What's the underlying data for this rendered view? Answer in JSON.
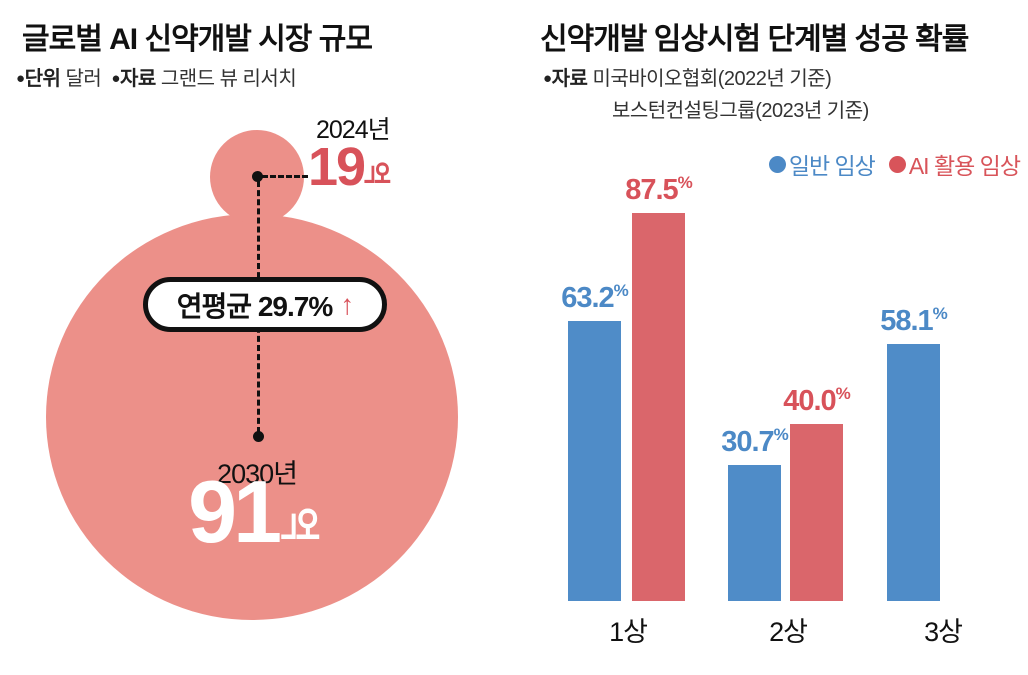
{
  "left_chart": {
    "title": "글로벌 AI 신약개발 시장 규모",
    "meta": [
      {
        "bullet": "●",
        "key": "단위",
        "value": "달러"
      },
      {
        "bullet": "●",
        "key": "자료",
        "value": "그랜드 뷰 리서치"
      }
    ],
    "bubbles": [
      {
        "year": "2024년",
        "value": "19",
        "unit": "억"
      },
      {
        "year": "2030년",
        "value": "91",
        "unit": "억"
      }
    ],
    "growth_badge": {
      "label": "연평균 29.7%",
      "arrow": "↑"
    },
    "colors": {
      "bubble": "#EC9089",
      "accent_red": "#D8525A",
      "white": "#FFFFFF"
    }
  },
  "right_chart": {
    "title": "신약개발 임상시험 단계별 성공 확률",
    "meta": {
      "bullet": "●",
      "key": "자료",
      "line1": "미국바이오협회(2022년 기준)",
      "line2": "보스턴컨설팅그룹(2023년 기준)"
    },
    "legend": [
      {
        "bullet": "●",
        "label": "일반 임상",
        "color": "#4C89C6"
      },
      {
        "bullet": "●",
        "label": "AI 활용 임상",
        "color": "#D8545A"
      }
    ]
  },
  "chart_data": [
    {
      "type": "bubble",
      "title": "글로벌 AI 신약개발 시장 규모",
      "unit": "억 달러",
      "points": [
        {
          "label": "2024년",
          "value": 19
        },
        {
          "label": "2030년",
          "value": 91
        }
      ],
      "annotation": "연평균 29.7% ↑",
      "bubble_color": "#EC9089"
    },
    {
      "type": "bar",
      "title": "신약개발 임상시험 단계별 성공 확률",
      "categories": [
        "1상",
        "2상",
        "3상"
      ],
      "series": [
        {
          "name": "일반 임상",
          "color": "#4F8CC8",
          "label_color": "#4C89C6",
          "values": [
            63.2,
            30.7,
            58.1
          ]
        },
        {
          "name": "AI 활용 임상",
          "color": "#DA666B",
          "label_color": "#D8525A",
          "values": [
            87.5,
            40.0,
            null
          ]
        }
      ],
      "unit": "%",
      "ylim": [
        0,
        100
      ],
      "grid": false,
      "legend_position": "top-right"
    }
  ]
}
